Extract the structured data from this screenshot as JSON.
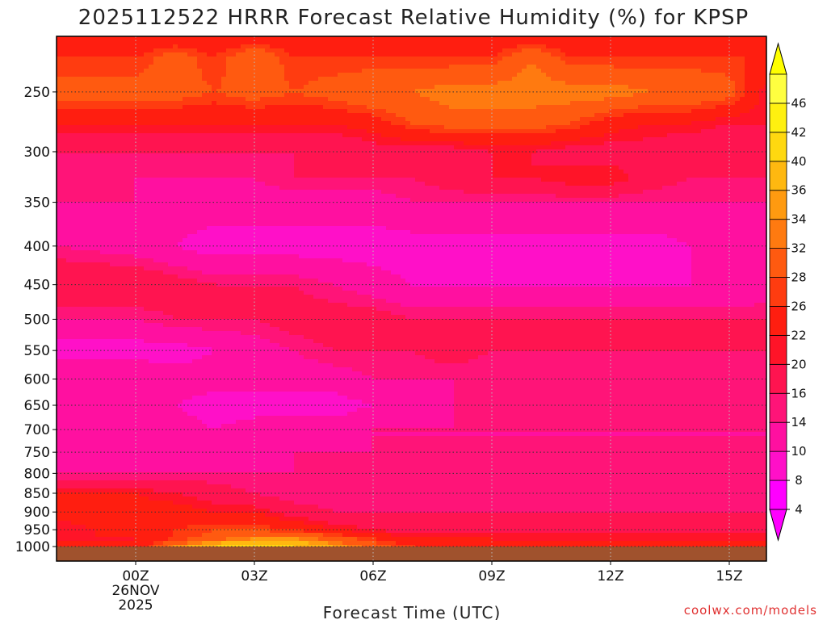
{
  "chart_data": {
    "type": "heatmap",
    "title": "2025112522 HRRR Forecast Relative Humidity (%) for KPSP",
    "xlabel": "Forecast Time (UTC)",
    "ylabel": "",
    "y_scale": "log-pressure",
    "y_reversed": true,
    "grid": true,
    "legend": "right colorbar",
    "x_ticks": [
      {
        "label": "00Z",
        "sub": [
          "26NOV",
          "2025"
        ]
      },
      {
        "label": "03Z",
        "sub": []
      },
      {
        "label": "06Z",
        "sub": []
      },
      {
        "label": "09Z",
        "sub": []
      },
      {
        "label": "12Z",
        "sub": []
      },
      {
        "label": "15Z",
        "sub": []
      }
    ],
    "y_ticks": [
      250,
      300,
      350,
      400,
      450,
      500,
      550,
      600,
      650,
      700,
      750,
      800,
      850,
      900,
      950,
      1000
    ],
    "colorbar": {
      "levels": [
        4,
        8,
        10,
        14,
        16,
        20,
        22,
        26,
        28,
        32,
        34,
        36,
        40,
        42,
        46
      ],
      "colors": [
        "#ff00ff",
        "#ff10c8",
        "#ff10a0",
        "#ff1478",
        "#ff1450",
        "#ff1428",
        "#ff1e10",
        "#ff3c10",
        "#ff5a10",
        "#ff7a10",
        "#ff9a10",
        "#ffb810",
        "#ffd810",
        "#fff010",
        "#ffff40"
      ],
      "under_color": "#ff00ff",
      "over_color": "#ffff00"
    },
    "values_rh_pct": {
      "x_hours": [
        -2,
        0,
        1,
        2,
        3,
        4,
        5,
        6,
        7,
        8,
        9,
        10,
        11,
        12,
        13,
        14,
        15,
        16
      ],
      "pressure_hpa": [
        210,
        225,
        250,
        275,
        300,
        325,
        350,
        400,
        450,
        500,
        550,
        600,
        650,
        700,
        750,
        800,
        850,
        900,
        950,
        975,
        1000
      ],
      "rows": [
        [
          22,
          22,
          22,
          22,
          22,
          22,
          22,
          22,
          22,
          22,
          22,
          22,
          22,
          22,
          22,
          22,
          22,
          22
        ],
        [
          26,
          26,
          30,
          26,
          32,
          26,
          26,
          26,
          26,
          26,
          26,
          32,
          26,
          26,
          26,
          26,
          26,
          26
        ],
        [
          30,
          30,
          30,
          28,
          30,
          28,
          30,
          32,
          32,
          34,
          34,
          34,
          34,
          34,
          32,
          32,
          30,
          20
        ],
        [
          22,
          22,
          22,
          22,
          22,
          22,
          22,
          24,
          28,
          30,
          30,
          30,
          28,
          24,
          22,
          22,
          20,
          20
        ],
        [
          16,
          16,
          16,
          16,
          16,
          16,
          16,
          18,
          18,
          18,
          20,
          20,
          18,
          18,
          18,
          16,
          16,
          16
        ],
        [
          16,
          14,
          14,
          14,
          14,
          16,
          16,
          16,
          16,
          18,
          20,
          20,
          22,
          22,
          18,
          16,
          16,
          16
        ],
        [
          14,
          14,
          12,
          12,
          12,
          12,
          12,
          12,
          14,
          14,
          14,
          14,
          14,
          14,
          14,
          14,
          14,
          14
        ],
        [
          14,
          12,
          10,
          8,
          8,
          8,
          8,
          8,
          8,
          8,
          8,
          8,
          8,
          8,
          8,
          10,
          10,
          12
        ],
        [
          20,
          20,
          18,
          16,
          16,
          16,
          14,
          12,
          10,
          10,
          10,
          10,
          10,
          10,
          10,
          10,
          10,
          12
        ],
        [
          14,
          14,
          16,
          16,
          16,
          18,
          18,
          18,
          16,
          16,
          16,
          16,
          16,
          16,
          16,
          16,
          16,
          16
        ],
        [
          8,
          8,
          8,
          10,
          12,
          14,
          16,
          16,
          16,
          18,
          16,
          16,
          16,
          16,
          16,
          16,
          16,
          16
        ],
        [
          14,
          14,
          12,
          12,
          12,
          12,
          12,
          14,
          14,
          14,
          14,
          14,
          14,
          14,
          14,
          14,
          14,
          14
        ],
        [
          10,
          10,
          10,
          8,
          8,
          8,
          8,
          10,
          12,
          14,
          14,
          14,
          14,
          14,
          14,
          14,
          14,
          14
        ],
        [
          14,
          14,
          12,
          10,
          12,
          12,
          12,
          14,
          14,
          14,
          14,
          14,
          14,
          14,
          14,
          14,
          14,
          14
        ],
        [
          10,
          10,
          10,
          10,
          12,
          14,
          14,
          14,
          14,
          14,
          14,
          14,
          14,
          14,
          14,
          14,
          14,
          14
        ],
        [
          14,
          14,
          14,
          14,
          14,
          14,
          14,
          14,
          14,
          14,
          14,
          14,
          14,
          14,
          14,
          14,
          14,
          14
        ],
        [
          22,
          22,
          20,
          18,
          16,
          14,
          14,
          14,
          14,
          14,
          14,
          14,
          14,
          16,
          14,
          14,
          14,
          14
        ],
        [
          24,
          24,
          24,
          22,
          22,
          18,
          16,
          16,
          16,
          16,
          16,
          16,
          16,
          16,
          16,
          16,
          16,
          16
        ],
        [
          20,
          24,
          26,
          28,
          28,
          26,
          22,
          20,
          18,
          18,
          18,
          18,
          18,
          18,
          18,
          18,
          18,
          18
        ],
        [
          22,
          22,
          26,
          30,
          34,
          34,
          30,
          26,
          22,
          22,
          22,
          22,
          22,
          22,
          22,
          22,
          22,
          22
        ],
        [
          22,
          22,
          34,
          40,
          42,
          40,
          36,
          30,
          26,
          24,
          22,
          22,
          22,
          22,
          22,
          22,
          22,
          22
        ]
      ]
    }
  },
  "credit": "coolwx.com/models"
}
